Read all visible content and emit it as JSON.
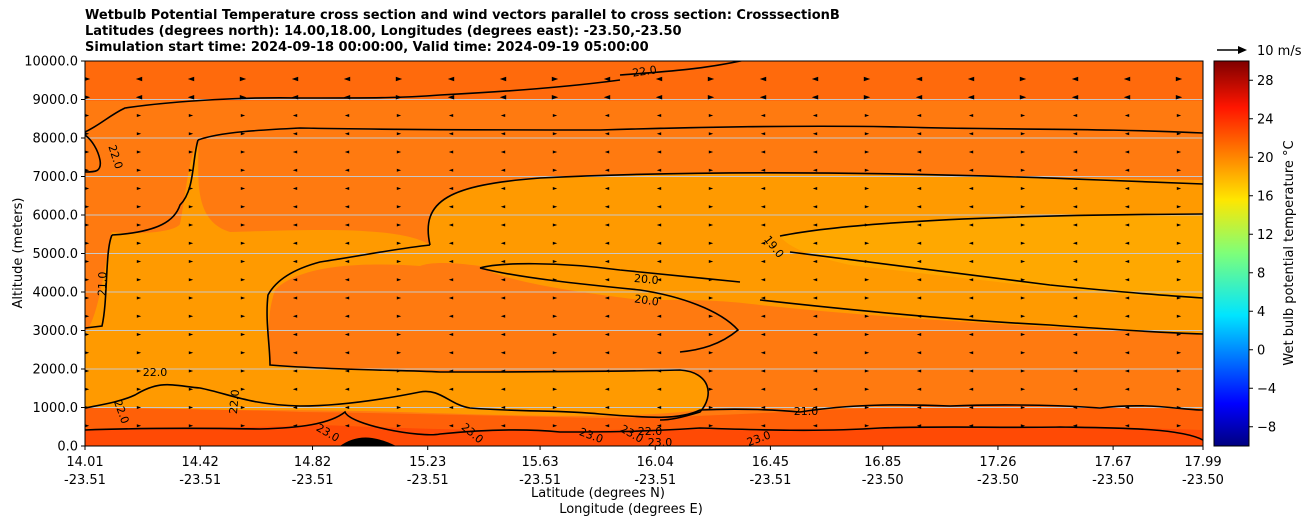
{
  "chart_data": {
    "type": "heatmap",
    "title_lines": [
      "Wetbulb Potential Temperature cross section and wind vectors parallel to cross section: CrosssectionB",
      "Latitudes (degrees north): 14.00,18.00, Longitudes (degrees east): -23.50,-23.50",
      "Simulation start time: 2024-09-18 00:00:00, Valid time: 2024-09-19 05:00:00"
    ],
    "ylabel": "Altitude (meters)",
    "xlabel_line1": "Latitude (degrees N)",
    "xlabel_line2": "Longitude (degrees E)",
    "ylim": [
      0,
      10000
    ],
    "y_ticks": [
      "0.0",
      "1000.0",
      "2000.0",
      "3000.0",
      "4000.0",
      "5000.0",
      "6000.0",
      "7000.0",
      "8000.0",
      "9000.0",
      "10000.0"
    ],
    "x_ticks": [
      {
        "lat": "14.01",
        "lon": "-23.51"
      },
      {
        "lat": "14.42",
        "lon": "-23.51"
      },
      {
        "lat": "14.82",
        "lon": "-23.51"
      },
      {
        "lat": "15.23",
        "lon": "-23.51"
      },
      {
        "lat": "15.63",
        "lon": "-23.51"
      },
      {
        "lat": "16.04",
        "lon": "-23.51"
      },
      {
        "lat": "16.45",
        "lon": "-23.51"
      },
      {
        "lat": "16.85",
        "lon": "-23.50"
      },
      {
        "lat": "17.26",
        "lon": "-23.50"
      },
      {
        "lat": "17.67",
        "lon": "-23.50"
      },
      {
        "lat": "17.99",
        "lon": "-23.50"
      }
    ],
    "colorbar": {
      "label": "Wet bulb potential temperature °C",
      "ticks": [
        "−8",
        "−4",
        "0",
        "4",
        "8",
        "12",
        "16",
        "20",
        "24",
        "28"
      ],
      "range": [
        -10,
        30
      ]
    },
    "grid": "horizontal",
    "quiver_key": "10 m/s",
    "contour_labels": [
      "22.0",
      "22.0",
      "21.0",
      "22.0",
      "22.0",
      "22.0",
      "20.0",
      "20.0",
      "19.0",
      "21.0",
      "23.0",
      "23.0",
      "23.0",
      "23.0",
      "22.0",
      "23.0",
      "23.0"
    ]
  },
  "colors": {
    "background_field": "#ff7a10",
    "upper_field": "#ff6a0c",
    "warm_layer": "#ff6008",
    "surface_layer": "#ff4a05",
    "inner_region": "#ff9a00",
    "core_region": "#ffa800",
    "contour": "#000000",
    "grid": "#c8c8c8"
  }
}
